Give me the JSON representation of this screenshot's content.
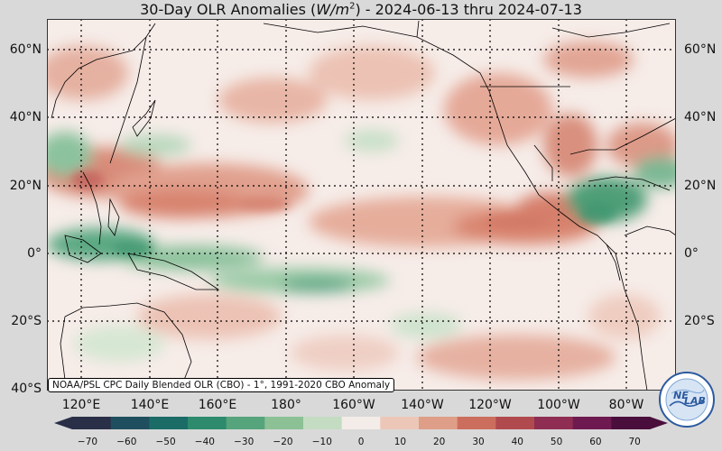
{
  "title": {
    "main": "30-Day OLR Anomalies (",
    "unit": "W/m",
    "exp": "2",
    "rest": ") - 2024-06-13 thru 2024-07-13"
  },
  "lat_labels": [
    "60°N",
    "40°N",
    "20°N",
    "0°",
    "20°S",
    "40°S"
  ],
  "lon_labels": [
    "120°E",
    "140°E",
    "160°E",
    "180°",
    "160°W",
    "140°W",
    "120°W",
    "100°W",
    "80°W"
  ],
  "source_note": "NOAA/PSL CPC Daily Blended OLR (CBO) - 1°, 1991-2020 CBO Anomaly",
  "colorbar": {
    "ticks": [
      "−70",
      "−60",
      "−50",
      "−40",
      "−30",
      "−20",
      "−10",
      "0",
      "10",
      "20",
      "30",
      "40",
      "50",
      "60",
      "70"
    ],
    "colors": [
      "#2a2f48",
      "#1f4e5e",
      "#1b6b67",
      "#2d8a6c",
      "#56a47c",
      "#8cc195",
      "#c3dcc2",
      "#f3ece8",
      "#ecc7b8",
      "#df9e88",
      "#cc6e5e",
      "#b04a4e",
      "#8f2e52",
      "#6e1a50",
      "#4a0e3c"
    ]
  },
  "logo": {
    "text1": "NE",
    "text2": "LAB"
  },
  "colors": {
    "land_outline": "#000000",
    "warm": "#d97a66",
    "cool": "#3f9e72",
    "neutral": "#f5ebe7"
  }
}
